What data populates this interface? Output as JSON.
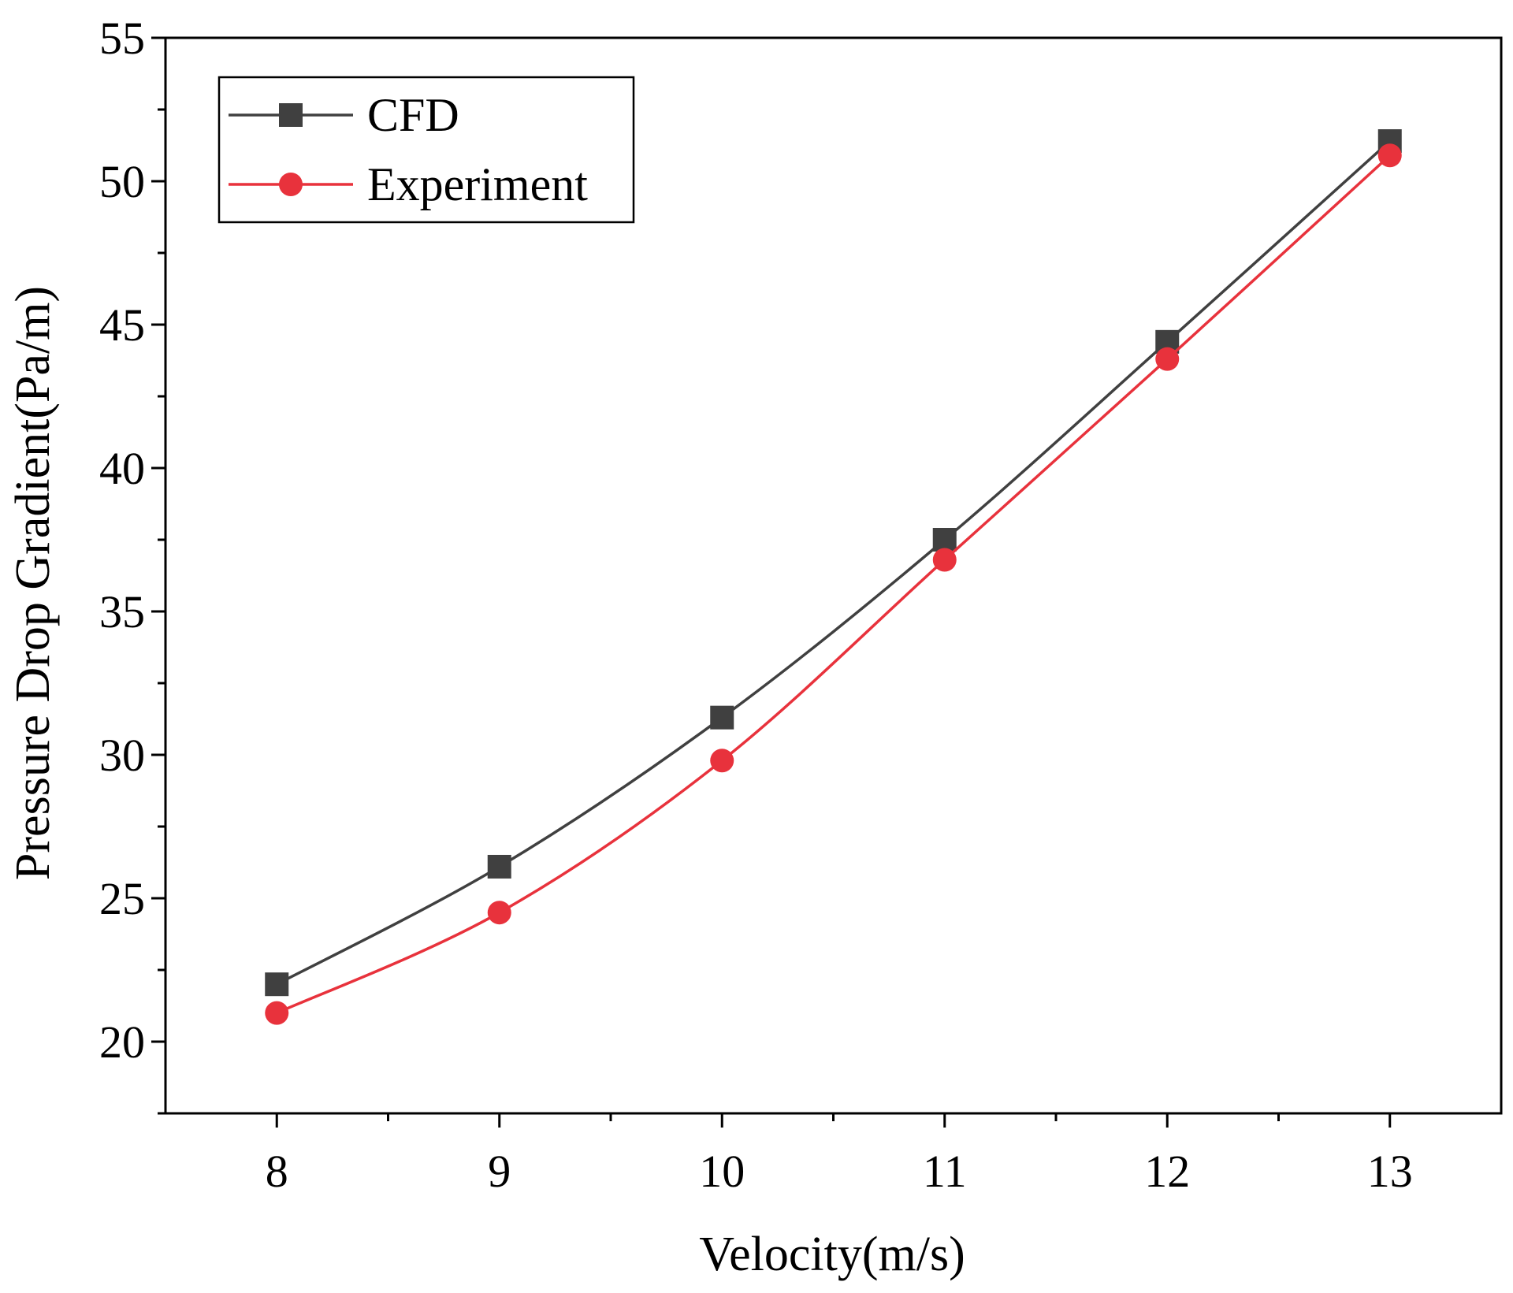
{
  "chart_data": {
    "type": "line",
    "title": "",
    "xlabel": "Velocity(m/s)",
    "ylabel": "Pressure Drop Gradient(Pa/m)",
    "xlim": [
      7.5,
      13.5
    ],
    "ylim": [
      17.5,
      55
    ],
    "xticks": [
      8,
      9,
      10,
      11,
      12,
      13
    ],
    "xtick_labels": [
      "8",
      "9",
      "10",
      "11",
      "12",
      "13"
    ],
    "yticks": [
      20,
      25,
      30,
      35,
      40,
      45,
      50,
      55
    ],
    "ytick_labels": [
      "20",
      "25",
      "30",
      "35",
      "40",
      "45",
      "50",
      "55"
    ],
    "x": [
      8,
      9,
      10,
      11,
      12,
      13
    ],
    "series": [
      {
        "name": "CFD",
        "marker": "square",
        "color": "#404040",
        "values": [
          22.0,
          26.1,
          31.3,
          37.5,
          44.4,
          51.4
        ]
      },
      {
        "name": "Experiment",
        "marker": "circle",
        "color": "#e8323c",
        "values": [
          21.0,
          24.5,
          29.8,
          36.8,
          43.8,
          50.9
        ]
      }
    ],
    "legend": {
      "position": "top-left",
      "entries": [
        "CFD",
        "Experiment"
      ]
    },
    "grid": false
  }
}
